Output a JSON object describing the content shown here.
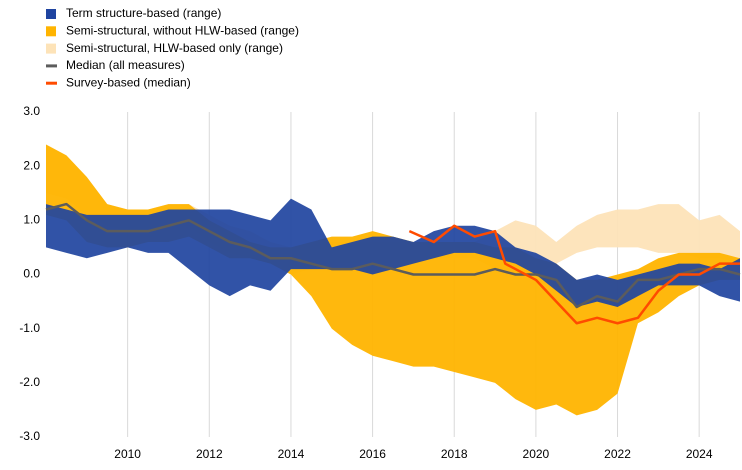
{
  "chart_data": {
    "type": "line",
    "xlim": [
      2008,
      2025
    ],
    "xticks": [
      2010,
      2012,
      2014,
      2016,
      2018,
      2020,
      2022,
      2024
    ],
    "ylim": [
      -3,
      3
    ],
    "yticks": [
      {
        "value": 3,
        "label": "3.0"
      },
      {
        "value": 2,
        "label": "2.0"
      },
      {
        "value": 1,
        "label": "1.0"
      },
      {
        "value": 0,
        "label": "0.0"
      },
      {
        "value": -1,
        "label": "-1.0"
      },
      {
        "value": -2,
        "label": "-2.0"
      },
      {
        "value": -3,
        "label": "-3.0"
      }
    ],
    "grid": "x",
    "legend": "top-left",
    "series": [
      {
        "name": "Term structure-based (range)",
        "kind": "range",
        "color": "#1f44a0",
        "x": [
          2008.0,
          2008.5,
          2009.0,
          2009.5,
          2010.0,
          2010.5,
          2011.0,
          2011.5,
          2012.0,
          2012.5,
          2013.0,
          2013.5,
          2014.0,
          2014.5,
          2015.0,
          2015.5,
          2016.0,
          2016.5,
          2017.0,
          2017.5,
          2018.0,
          2018.5,
          2019.0,
          2019.5,
          2020.0,
          2020.5,
          2021.0,
          2021.5,
          2022.0,
          2022.5,
          2023.0,
          2023.5,
          2024.0,
          2024.5,
          2025.0
        ],
        "low": [
          0.5,
          0.4,
          0.3,
          0.4,
          0.5,
          0.4,
          0.4,
          0.1,
          -0.2,
          -0.4,
          -0.2,
          -0.3,
          0.1,
          0.1,
          0.1,
          0.1,
          0.0,
          0.1,
          0.2,
          0.3,
          0.4,
          0.4,
          0.3,
          0.2,
          0.0,
          -0.3,
          -0.6,
          -0.5,
          -0.6,
          -0.4,
          -0.2,
          -0.2,
          -0.2,
          -0.4,
          -0.5
        ],
        "high": [
          1.3,
          1.2,
          1.1,
          1.1,
          1.1,
          1.1,
          1.2,
          1.2,
          1.2,
          1.2,
          1.1,
          1.0,
          1.4,
          1.2,
          0.5,
          0.6,
          0.7,
          0.7,
          0.6,
          0.8,
          0.9,
          0.9,
          0.8,
          0.5,
          0.4,
          0.2,
          -0.1,
          0.0,
          -0.1,
          0.0,
          0.1,
          0.2,
          0.2,
          0.1,
          0.3
        ]
      },
      {
        "name": "Semi-structural, without HLW-based (range)",
        "kind": "range",
        "color": "#ffb400",
        "x": [
          2008.0,
          2008.5,
          2009.0,
          2009.5,
          2010.0,
          2010.5,
          2011.0,
          2011.5,
          2012.0,
          2012.5,
          2013.0,
          2013.5,
          2014.0,
          2014.5,
          2015.0,
          2015.5,
          2016.0,
          2016.5,
          2017.0,
          2017.5,
          2018.0,
          2018.5,
          2019.0,
          2019.5,
          2020.0,
          2020.5,
          2021.0,
          2021.5,
          2022.0,
          2022.5,
          2023.0,
          2023.5,
          2024.0,
          2024.5,
          2025.0
        ],
        "low": [
          1.1,
          1.0,
          0.6,
          0.5,
          0.5,
          0.6,
          0.6,
          0.7,
          0.5,
          0.3,
          0.3,
          0.2,
          0.0,
          -0.4,
          -1.0,
          -1.3,
          -1.5,
          -1.6,
          -1.7,
          -1.7,
          -1.8,
          -1.9,
          -2.0,
          -2.3,
          -2.5,
          -2.4,
          -2.6,
          -2.5,
          -2.2,
          -0.9,
          -0.7,
          -0.4,
          -0.2,
          -0.1,
          -0.1
        ],
        "high": [
          2.4,
          2.2,
          1.8,
          1.3,
          1.2,
          1.2,
          1.3,
          1.3,
          1.0,
          0.8,
          0.6,
          0.5,
          0.5,
          0.6,
          0.7,
          0.7,
          0.8,
          0.7,
          0.6,
          0.6,
          0.6,
          0.6,
          0.5,
          0.5,
          0.3,
          0.2,
          -0.1,
          -0.1,
          0.0,
          0.1,
          0.3,
          0.4,
          0.4,
          0.4,
          0.3
        ]
      },
      {
        "name": "Semi-structural, HLW-based only (range)",
        "kind": "range",
        "color": "#fde3b8",
        "x": [
          2008.0,
          2008.5,
          2009.0,
          2009.5,
          2010.0,
          2010.5,
          2011.0,
          2011.5,
          2012.0,
          2012.5,
          2013.0,
          2013.5,
          2014.0,
          2014.5,
          2015.0,
          2015.5,
          2016.0,
          2016.5,
          2017.0,
          2017.5,
          2018.0,
          2018.5,
          2019.0,
          2019.5,
          2020.0,
          2020.5,
          2021.0,
          2021.5,
          2022.0,
          2022.5,
          2023.0,
          2023.5,
          2024.0,
          2024.5,
          2025.0
        ],
        "low": [
          1.5,
          1.4,
          1.1,
          0.9,
          0.8,
          0.8,
          0.9,
          0.9,
          0.6,
          0.4,
          0.3,
          0.2,
          0.0,
          0.1,
          0.2,
          0.2,
          0.2,
          0.2,
          0.2,
          0.3,
          0.3,
          0.3,
          0.1,
          0.0,
          0.0,
          0.2,
          0.4,
          0.5,
          0.5,
          0.5,
          0.4,
          0.4,
          0.3,
          0.3,
          0.2
        ],
        "high": [
          2.4,
          2.2,
          1.8,
          1.3,
          1.2,
          1.2,
          1.3,
          1.3,
          1.1,
          0.9,
          0.8,
          0.6,
          0.5,
          0.6,
          0.6,
          0.6,
          0.6,
          0.6,
          0.6,
          0.6,
          0.6,
          0.6,
          0.8,
          1.0,
          0.9,
          0.6,
          0.9,
          1.1,
          1.2,
          1.2,
          1.3,
          1.3,
          1.0,
          1.1,
          0.8
        ]
      },
      {
        "name": "Median (all measures)",
        "kind": "line",
        "color": "#5c5c5c",
        "x": [
          2008.0,
          2008.5,
          2009.0,
          2009.5,
          2010.0,
          2010.5,
          2011.0,
          2011.5,
          2012.0,
          2012.5,
          2013.0,
          2013.5,
          2014.0,
          2014.5,
          2015.0,
          2015.5,
          2016.0,
          2016.5,
          2017.0,
          2017.5,
          2018.0,
          2018.5,
          2019.0,
          2019.5,
          2020.0,
          2020.5,
          2021.0,
          2021.5,
          2022.0,
          2022.5,
          2023.0,
          2023.5,
          2024.0,
          2024.5,
          2025.0
        ],
        "values": [
          1.2,
          1.3,
          1.0,
          0.8,
          0.8,
          0.8,
          0.9,
          1.0,
          0.8,
          0.6,
          0.5,
          0.3,
          0.3,
          0.2,
          0.1,
          0.1,
          0.2,
          0.1,
          0.0,
          0.0,
          0.0,
          0.0,
          0.1,
          0.0,
          0.0,
          -0.1,
          -0.6,
          -0.4,
          -0.5,
          -0.1,
          -0.1,
          0.0,
          0.1,
          0.1,
          0.0
        ]
      },
      {
        "name": "Survey-based (median)",
        "kind": "line",
        "color": "#ff4b00",
        "x": [
          2016.9,
          2017.5,
          2018.0,
          2018.5,
          2019.0,
          2019.25,
          2019.5,
          2020.0,
          2020.5,
          2021.0,
          2021.5,
          2022.0,
          2022.5,
          2023.0,
          2023.5,
          2024.0,
          2024.5,
          2025.0
        ],
        "values": [
          0.8,
          0.6,
          0.9,
          0.7,
          0.8,
          0.2,
          0.1,
          -0.1,
          -0.5,
          -0.9,
          -0.8,
          -0.9,
          -0.8,
          -0.3,
          0.0,
          0.0,
          0.2,
          0.2
        ]
      }
    ]
  }
}
